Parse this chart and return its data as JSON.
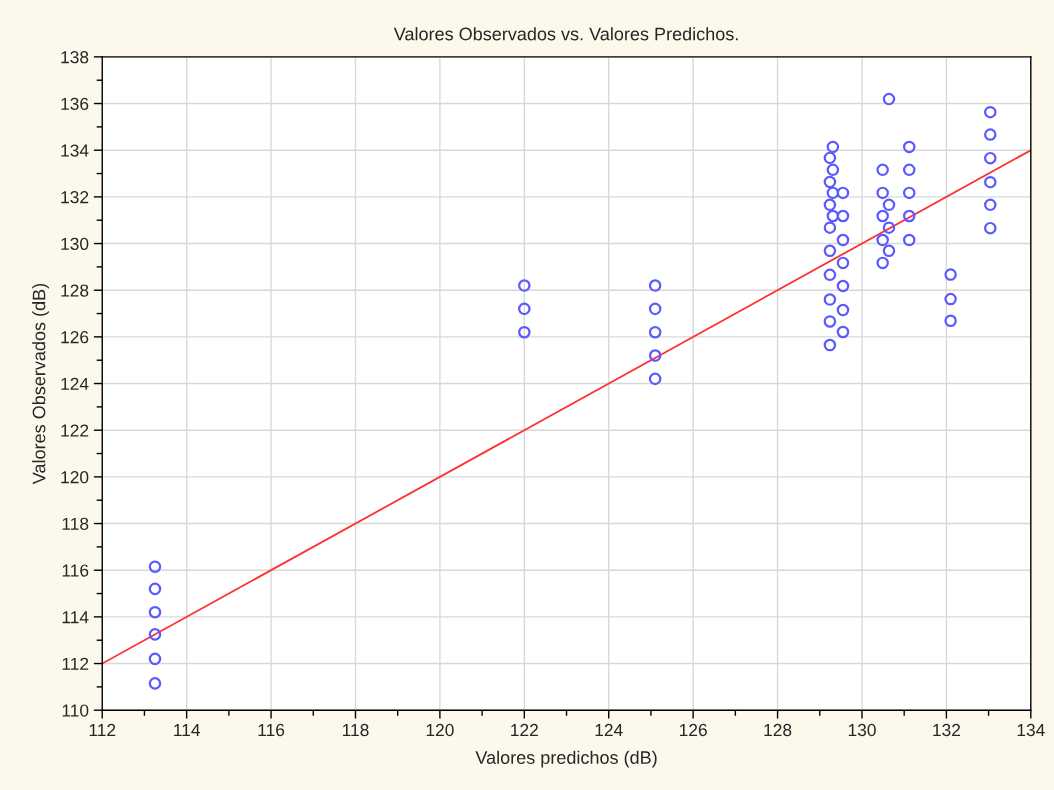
{
  "chart_data": {
    "type": "scatter",
    "title": "Valores Observados vs. Valores Predichos.",
    "xlabel": "Valores predichos (dB)",
    "ylabel": "Valores Observados (dB)",
    "xlim": [
      112,
      134
    ],
    "ylim": [
      110,
      138
    ],
    "xticks": [
      112,
      {
        "value": 113,
        "label": null
      },
      114,
      {
        "value": 115,
        "label": null
      },
      116,
      {
        "value": 117,
        "label": null
      },
      118,
      {
        "value": 119,
        "label": null
      },
      120,
      {
        "value": 121,
        "label": null
      },
      122,
      {
        "value": 123,
        "label": null
      },
      124,
      {
        "value": 125,
        "label": null
      },
      126,
      {
        "value": 127,
        "label": null
      },
      128,
      {
        "value": 129,
        "label": null
      },
      130,
      {
        "value": 131,
        "label": null
      },
      132,
      {
        "value": 133,
        "label": null
      },
      134
    ],
    "yticks": [
      110,
      {
        "value": 111,
        "label": null
      },
      112,
      {
        "value": 113,
        "label": null
      },
      114,
      {
        "value": 115,
        "label": null
      },
      116,
      {
        "value": 117,
        "label": null
      },
      118,
      {
        "value": 119,
        "label": null
      },
      120,
      {
        "value": 121,
        "label": null
      },
      122,
      {
        "value": 123,
        "label": null
      },
      124,
      {
        "value": 125,
        "label": null
      },
      126,
      {
        "value": 127,
        "label": null
      },
      128,
      {
        "value": 129,
        "label": null
      },
      130,
      {
        "value": 131,
        "label": null
      },
      132,
      {
        "value": 133,
        "label": null
      },
      134,
      {
        "value": 135,
        "label": null
      },
      136,
      {
        "value": 137,
        "label": null
      },
      138
    ],
    "grid": true,
    "marker": "circle",
    "series": [
      {
        "color": "#5a5aff",
        "x": [
          113.25,
          113.25,
          113.25,
          113.25,
          113.25,
          113.25,
          122.0,
          122.0,
          122.0,
          125.1,
          125.1,
          125.1,
          125.1,
          125.1,
          129.24,
          129.24,
          129.24,
          129.24,
          129.24,
          129.24,
          129.24,
          129.24,
          129.24,
          129.31,
          129.31,
          129.31,
          129.31,
          129.55,
          129.55,
          129.55,
          129.55,
          129.55,
          129.55,
          129.55,
          130.49,
          130.49,
          130.49,
          130.49,
          130.49,
          130.64,
          130.64,
          130.64,
          130.64,
          131.12,
          131.12,
          131.12,
          131.12,
          131.12,
          132.1,
          132.1,
          132.1,
          133.04,
          133.04,
          133.04,
          133.04,
          133.04,
          133.04
        ],
        "values": [
          116.15,
          115.2,
          114.2,
          113.25,
          112.2,
          111.15,
          128.2,
          127.2,
          126.2,
          128.2,
          127.2,
          126.2,
          125.2,
          124.2,
          133.67,
          132.64,
          131.66,
          130.68,
          129.69,
          128.66,
          127.6,
          126.66,
          125.65,
          134.14,
          133.16,
          132.17,
          131.18,
          132.17,
          131.18,
          130.15,
          129.17,
          128.18,
          127.15,
          126.21,
          133.16,
          132.17,
          131.18,
          130.15,
          129.17,
          136.19,
          131.66,
          130.68,
          129.69,
          134.14,
          133.16,
          132.17,
          131.18,
          130.15,
          128.67,
          127.62,
          126.69,
          135.63,
          134.67,
          133.66,
          132.63,
          131.66,
          130.66
        ]
      },
      {
        "type": "line",
        "color": "#ff3030",
        "marker": "none",
        "x": [
          112,
          134
        ],
        "values": [
          112,
          134
        ]
      }
    ]
  }
}
